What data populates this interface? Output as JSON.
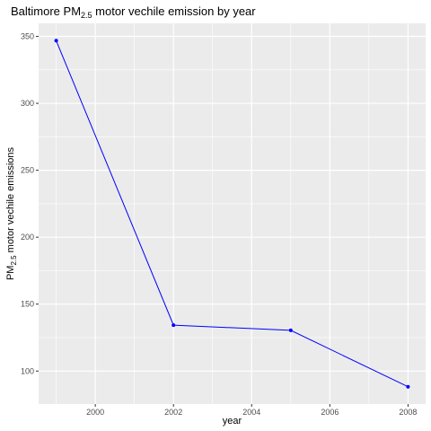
{
  "chart_data": {
    "type": "line",
    "title": {
      "prefix": "Baltimore PM",
      "subscript": "2.5",
      "suffix": " motor vechile emission by year"
    },
    "xlabel": "year",
    "ylabel": {
      "prefix": "PM",
      "subscript": "2.5",
      "suffix": " motor vechile emissions"
    },
    "x": [
      1999,
      2002,
      2005,
      2008
    ],
    "series": [
      {
        "values": [
          346.82,
          134.31,
          130.43,
          88.28
        ],
        "color": "#0000ff"
      }
    ],
    "xlim": [
      1998.55,
      2008.45
    ],
    "ylim": [
      75.35,
      359.75
    ],
    "xticks": [
      2000,
      2002,
      2004,
      2006,
      2008
    ],
    "xtick_labels": [
      "2000",
      "2002",
      "2004",
      "2006",
      "2008"
    ],
    "yticks": [
      100,
      150,
      200,
      250,
      300,
      350
    ],
    "ytick_labels": [
      "100",
      "150",
      "200",
      "250",
      "300",
      "350"
    ],
    "grid": true,
    "panel_background": "#ebebeb",
    "grid_color": "#ffffff"
  }
}
